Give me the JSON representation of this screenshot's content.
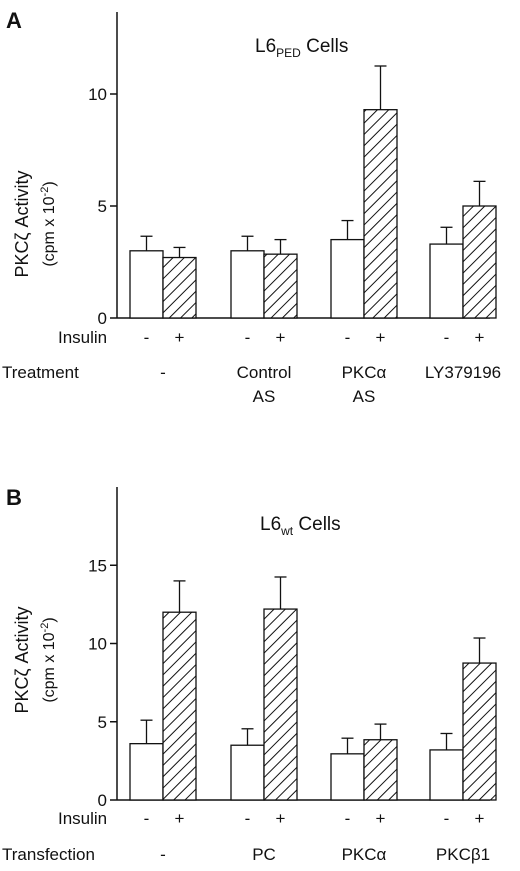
{
  "chart_data": [
    {
      "type": "bar",
      "panel_letter": "A",
      "title_main": "L6",
      "title_sub": "PED",
      "title_rest": " Cells",
      "ylabel_line1": "PKCζ Activity",
      "ylabel_line2": "(cpm x 10",
      "ylabel_exp": "-2",
      "ylabel_close": ")",
      "ylim": [
        0,
        14
      ],
      "yticks": [
        0,
        5,
        10
      ],
      "row1_label": "Insulin",
      "row2_label": "Treatment",
      "insulin_labels": [
        "-",
        "+"
      ],
      "categories": [
        {
          "line1": "-",
          "line2": ""
        },
        {
          "line1": "Control",
          "line2": "AS"
        },
        {
          "line1": "PKCα",
          "line2": "AS"
        },
        {
          "line1": "LY379196",
          "line2": ""
        }
      ],
      "series": [
        {
          "insulin": "-",
          "fill": "open",
          "values": [
            3.0,
            3.0,
            3.5,
            3.3
          ],
          "errors": [
            0.65,
            0.65,
            0.85,
            0.75
          ]
        },
        {
          "insulin": "+",
          "fill": "hatched",
          "values": [
            2.7,
            2.85,
            9.3,
            5.0
          ],
          "errors": [
            0.45,
            0.65,
            1.95,
            1.1
          ]
        }
      ]
    },
    {
      "type": "bar",
      "panel_letter": "B",
      "title_main": "L6",
      "title_sub": "wt",
      "title_rest": " Cells",
      "ylabel_line1": "PKCζ Activity",
      "ylabel_line2": "(cpm x 10",
      "ylabel_exp": "-2",
      "ylabel_close": ")",
      "ylim": [
        0,
        18
      ],
      "yticks": [
        0,
        5,
        10,
        15
      ],
      "row1_label": "Insulin",
      "row2_label": "Transfection",
      "insulin_labels": [
        "-",
        "+"
      ],
      "categories": [
        {
          "line1": "-",
          "line2": ""
        },
        {
          "line1": "PC",
          "line2": ""
        },
        {
          "line1": "PKCα",
          "line2": ""
        },
        {
          "line1": "PKCβ1",
          "line2": ""
        }
      ],
      "series": [
        {
          "insulin": "-",
          "fill": "open",
          "values": [
            3.6,
            3.5,
            2.95,
            3.2
          ],
          "errors": [
            1.5,
            1.05,
            1.0,
            1.05
          ]
        },
        {
          "insulin": "+",
          "fill": "hatched",
          "values": [
            12.0,
            12.2,
            3.85,
            8.75
          ],
          "errors": [
            2.0,
            2.05,
            1.0,
            1.6
          ]
        }
      ]
    }
  ]
}
